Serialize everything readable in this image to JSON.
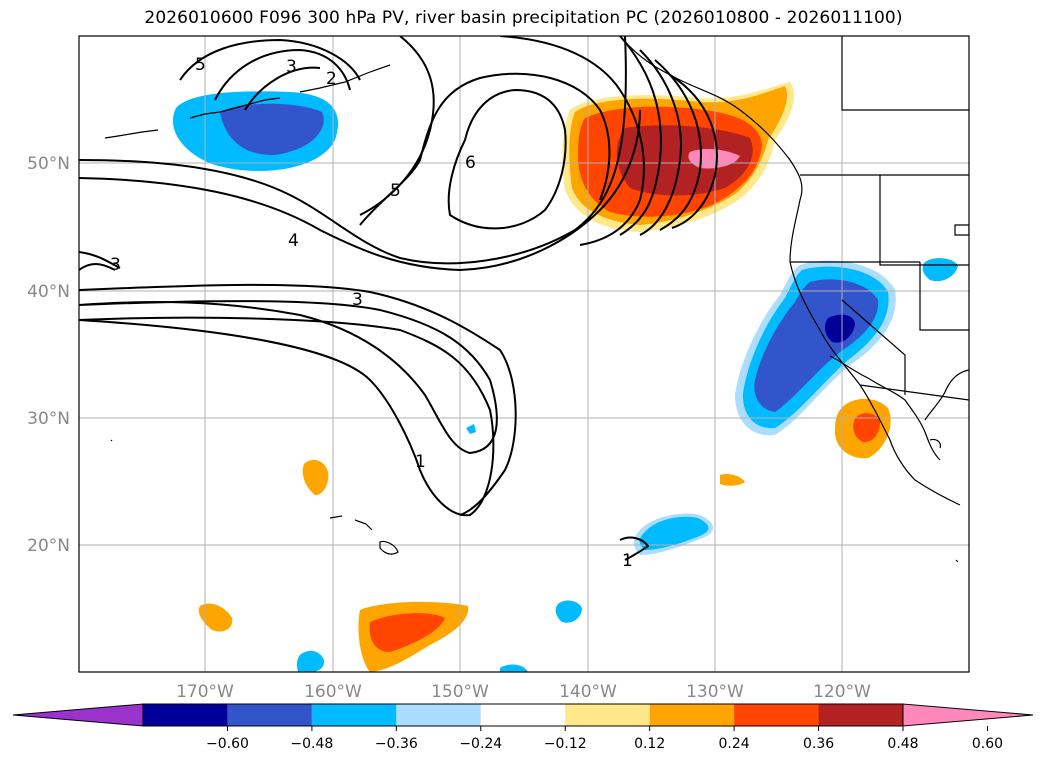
{
  "title": "2026010600 F096 300 hPa PV, river basin precipitation PC (2026010800 - 2026011100)",
  "lat_labels": [
    "50°N",
    "40°N",
    "30°N",
    "20°N"
  ],
  "lon_labels": [
    "170°W",
    "160°W",
    "150°W",
    "140°W",
    "130°W",
    "120°W"
  ],
  "colorbar": {
    "ticks": [
      "−0.60",
      "−0.48",
      "−0.36",
      "−0.24",
      "−0.12",
      "0.12",
      "0.24",
      "0.36",
      "0.48",
      "0.60"
    ],
    "colors": [
      "#9933cc",
      "#000099",
      "#3355cc",
      "#00bbff",
      "#aaddff",
      "#ffffff",
      "#ffe88a",
      "#ffa500",
      "#ff4500",
      "#b22222",
      "#ff88bb"
    ]
  },
  "contour_labels": [
    "5",
    "3",
    "2",
    "6",
    "5",
    "4",
    "3",
    "3",
    "1",
    "1"
  ]
}
